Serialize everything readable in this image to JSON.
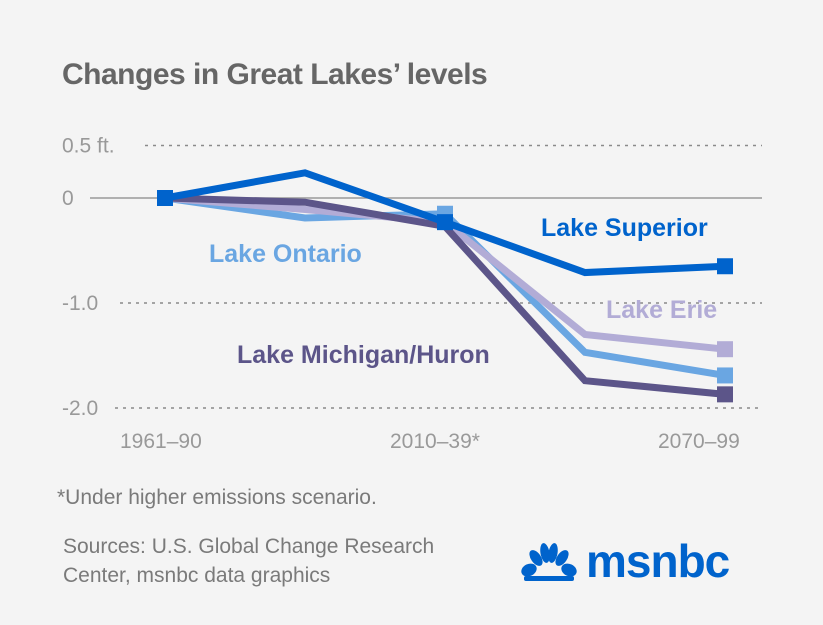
{
  "title": "Changes in Great Lakes’ levels",
  "footnote": "*Under higher emissions scenario.",
  "sources": [
    "Sources: U.S. Global Change Research",
    "Center, msnbc data graphics"
  ],
  "logo": {
    "icon": "nbc-peacock-icon",
    "text": "msnbc",
    "color": "#0063cc"
  },
  "chart_data": {
    "type": "line",
    "title": "Changes in Great Lakes’ levels",
    "xlabel": "",
    "ylabel": "ft.",
    "x": [
      "1961–90",
      "",
      "2010–39*",
      "",
      "2070–99"
    ],
    "x_tick_labels": [
      "1961–90",
      "2010–39*",
      "2070–99"
    ],
    "y_ticks": [
      {
        "value": 0.5,
        "label": "0.5 ft.",
        "style": "dotted"
      },
      {
        "value": 0,
        "label": "0",
        "style": "solid"
      },
      {
        "value": -1.0,
        "label": "-1.0",
        "style": "dotted"
      },
      {
        "value": -2.0,
        "label": "-2.0",
        "style": "dotted"
      }
    ],
    "ylim": [
      -2.0,
      0.5
    ],
    "grid": true,
    "series": [
      {
        "name": "Lake Ontario",
        "color": "#6aa6e2",
        "values": [
          0,
          -0.19,
          -0.15,
          -1.47,
          -1.69
        ],
        "markers": [
          0,
          2,
          4
        ]
      },
      {
        "name": "Lake Erie",
        "color": "#b2acd6",
        "values": [
          0,
          -0.11,
          -0.23,
          -1.3,
          -1.44
        ],
        "markers": [
          4
        ]
      },
      {
        "name": "Lake Michigan/Huron",
        "color": "#5c5589",
        "values": [
          0,
          -0.04,
          -0.27,
          -1.74,
          -1.87
        ],
        "markers": [
          4
        ]
      },
      {
        "name": "Lake Superior",
        "color": "#0063cc",
        "values": [
          0,
          0.24,
          -0.23,
          -0.71,
          -0.65
        ],
        "markers": [
          0,
          2,
          4
        ]
      }
    ],
    "annotations": [
      {
        "text": "Lake Superior",
        "series": "Lake Superior"
      },
      {
        "text": "Lake Ontario",
        "series": "Lake Ontario"
      },
      {
        "text": "Lake Erie",
        "series": "Lake Erie"
      },
      {
        "text": "Lake Michigan/Huron",
        "series": "Lake Michigan/Huron"
      }
    ]
  }
}
